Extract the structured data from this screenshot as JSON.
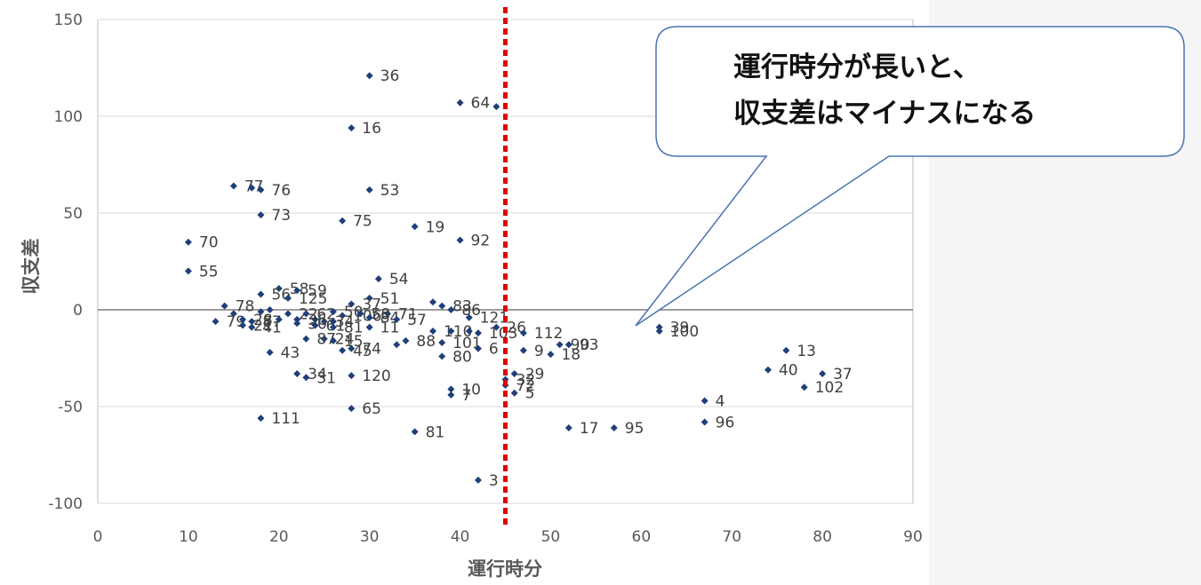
{
  "chart_data": {
    "type": "scatter",
    "title": "",
    "xlabel": "運行時分",
    "ylabel": "収支差",
    "xlim": [
      0,
      90
    ],
    "ylim": [
      -100,
      150
    ],
    "x_ticks": [
      "0",
      "10",
      "20",
      "30",
      "40",
      "50",
      "60",
      "70",
      "80",
      "90"
    ],
    "y_ticks": [
      "150",
      "100",
      "50",
      "0",
      "-50",
      "-100"
    ],
    "grid": true,
    "marker_color": "#1f3f7a",
    "reference_line": {
      "x": 45,
      "color": "#e00000",
      "style": "dotted"
    },
    "callout_lines": [
      "運行時分が長いと、",
      "収支差はマイナスになる"
    ],
    "points": [
      {
        "label": "36",
        "x": 30,
        "y": 121
      },
      {
        "label": "64",
        "x": 40,
        "y": 107
      },
      {
        "label": "",
        "x": 44,
        "y": 105
      },
      {
        "label": "16",
        "x": 28,
        "y": 94
      },
      {
        "label": "77",
        "x": 15,
        "y": 64
      },
      {
        "label": "",
        "x": 17,
        "y": 63
      },
      {
        "label": "76",
        "x": 18,
        "y": 62
      },
      {
        "label": "53",
        "x": 30,
        "y": 62
      },
      {
        "label": "73",
        "x": 18,
        "y": 49
      },
      {
        "label": "75",
        "x": 27,
        "y": 46
      },
      {
        "label": "19",
        "x": 35,
        "y": 43
      },
      {
        "label": "92",
        "x": 40,
        "y": 36
      },
      {
        "label": "70",
        "x": 10,
        "y": 35
      },
      {
        "label": "55",
        "x": 10,
        "y": 20
      },
      {
        "label": "54",
        "x": 31,
        "y": 16
      },
      {
        "label": "58",
        "x": 20,
        "y": 11
      },
      {
        "label": "59",
        "x": 22,
        "y": 10
      },
      {
        "label": "56",
        "x": 18,
        "y": 8
      },
      {
        "label": "125",
        "x": 21,
        "y": 6
      },
      {
        "label": "51",
        "x": 30,
        "y": 6
      },
      {
        "label": "",
        "x": 37,
        "y": 4
      },
      {
        "label": "83",
        "x": 38,
        "y": 2
      },
      {
        "label": "37",
        "x": 28,
        "y": 3
      },
      {
        "label": "78",
        "x": 14,
        "y": 2
      },
      {
        "label": "86",
        "x": 39,
        "y": 0
      },
      {
        "label": "",
        "x": 15,
        "y": -2
      },
      {
        "label": "",
        "x": 18,
        "y": -1
      },
      {
        "label": "",
        "x": 19,
        "y": 0
      },
      {
        "label": "22",
        "x": 21,
        "y": -2
      },
      {
        "label": "62",
        "x": 23,
        "y": -2
      },
      {
        "label": "50",
        "x": 26,
        "y": -1
      },
      {
        "label": "106",
        "x": 27,
        "y": -3
      },
      {
        "label": "58",
        "x": 29,
        "y": -2
      },
      {
        "label": "71",
        "x": 32,
        "y": -2
      },
      {
        "label": "84",
        "x": 30,
        "y": -4
      },
      {
        "label": "57",
        "x": 33,
        "y": -5
      },
      {
        "label": "121",
        "x": 41,
        "y": -4
      },
      {
        "label": "79",
        "x": 13,
        "y": -6
      },
      {
        "label": "28",
        "x": 16,
        "y": -5
      },
      {
        "label": "87",
        "x": 17,
        "y": -6
      },
      {
        "label": "",
        "x": 20,
        "y": -5
      },
      {
        "label": "36",
        "x": 22,
        "y": -5
      },
      {
        "label": "",
        "x": 24,
        "y": -5
      },
      {
        "label": "34",
        "x": 25,
        "y": -6
      },
      {
        "label": "",
        "x": 26,
        "y": -6
      },
      {
        "label": "21",
        "x": 16,
        "y": -8
      },
      {
        "label": "41",
        "x": 17,
        "y": -9
      },
      {
        "label": "30",
        "x": 22,
        "y": -7
      },
      {
        "label": "61",
        "x": 24,
        "y": -8
      },
      {
        "label": "81",
        "x": 26,
        "y": -9
      },
      {
        "label": "11",
        "x": 30,
        "y": -9
      },
      {
        "label": "26",
        "x": 44,
        "y": -9
      },
      {
        "label": "110",
        "x": 37,
        "y": -11
      },
      {
        "label": "",
        "x": 39,
        "y": -11
      },
      {
        "label": "",
        "x": 41,
        "y": -11
      },
      {
        "label": "103",
        "x": 42,
        "y": -12
      },
      {
        "label": "112",
        "x": 47,
        "y": -12
      },
      {
        "label": "39",
        "x": 62,
        "y": -9
      },
      {
        "label": "100",
        "x": 62,
        "y": -11
      },
      {
        "label": "24",
        "x": 25,
        "y": -15
      },
      {
        "label": "87",
        "x": 23,
        "y": -15
      },
      {
        "label": "15",
        "x": 26,
        "y": -16
      },
      {
        "label": "88",
        "x": 34,
        "y": -16
      },
      {
        "label": "101",
        "x": 38,
        "y": -17
      },
      {
        "label": "",
        "x": 33,
        "y": -18
      },
      {
        "label": "90",
        "x": 51,
        "y": -18
      },
      {
        "label": "93",
        "x": 52,
        "y": -18
      },
      {
        "label": "74",
        "x": 28,
        "y": -20
      },
      {
        "label": "45",
        "x": 27,
        "y": -21
      },
      {
        "label": "6",
        "x": 42,
        "y": -20
      },
      {
        "label": "9",
        "x": 47,
        "y": -21
      },
      {
        "label": "13",
        "x": 76,
        "y": -21
      },
      {
        "label": "43",
        "x": 19,
        "y": -22
      },
      {
        "label": "18",
        "x": 50,
        "y": -23
      },
      {
        "label": "80",
        "x": 38,
        "y": -24
      },
      {
        "label": "40",
        "x": 74,
        "y": -31
      },
      {
        "label": "29",
        "x": 46,
        "y": -33
      },
      {
        "label": "34",
        "x": 22,
        "y": -33
      },
      {
        "label": "37",
        "x": 80,
        "y": -33
      },
      {
        "label": "31",
        "x": 23,
        "y": -35
      },
      {
        "label": "120",
        "x": 28,
        "y": -34
      },
      {
        "label": "32",
        "x": 45,
        "y": -36
      },
      {
        "label": "72",
        "x": 45,
        "y": -39
      },
      {
        "label": "102",
        "x": 78,
        "y": -40
      },
      {
        "label": "10",
        "x": 39,
        "y": -41
      },
      {
        "label": "5",
        "x": 46,
        "y": -43
      },
      {
        "label": "7",
        "x": 39,
        "y": -44
      },
      {
        "label": "4",
        "x": 67,
        "y": -47
      },
      {
        "label": "65",
        "x": 28,
        "y": -51
      },
      {
        "label": "111",
        "x": 18,
        "y": -56
      },
      {
        "label": "96",
        "x": 67,
        "y": -58
      },
      {
        "label": "17",
        "x": 52,
        "y": -61
      },
      {
        "label": "95",
        "x": 57,
        "y": -61
      },
      {
        "label": "81",
        "x": 35,
        "y": -63
      },
      {
        "label": "3",
        "x": 42,
        "y": -88
      }
    ]
  }
}
